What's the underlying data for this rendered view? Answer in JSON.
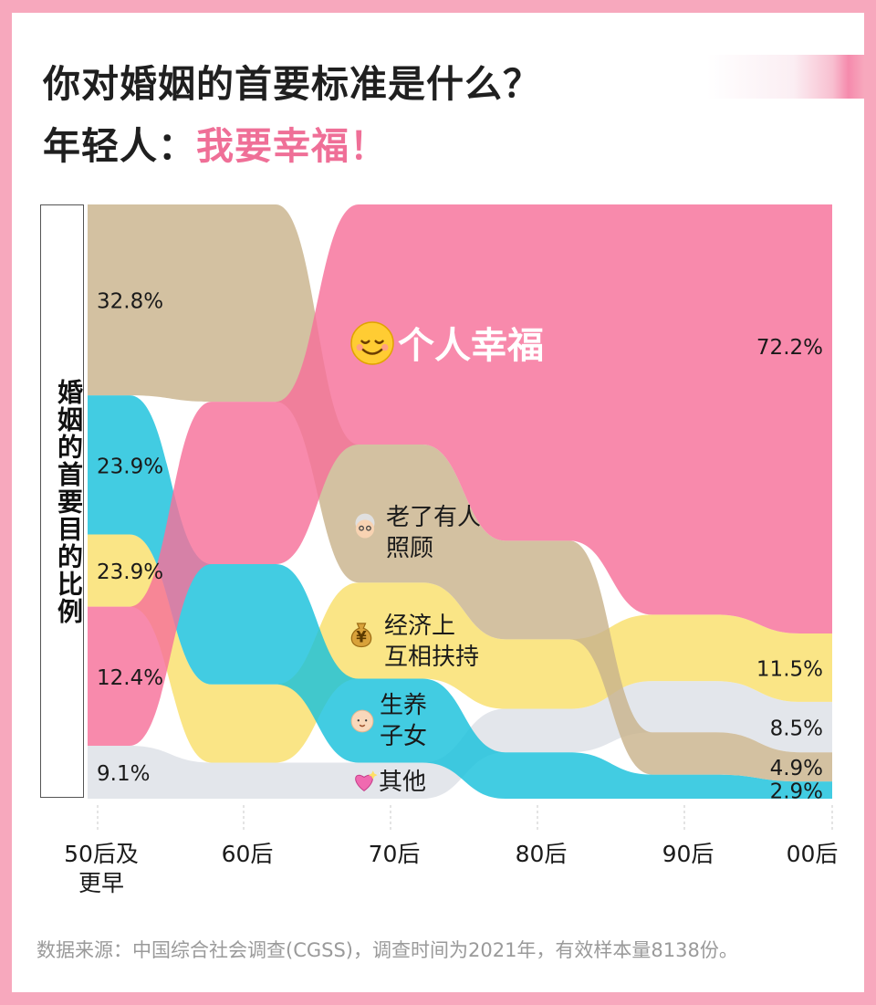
{
  "header": {
    "title_line1": "你对婚姻的首要标准是什么？",
    "title_line2_prefix": "年轻人：",
    "title_line2_highlight": "我要幸福！"
  },
  "chart_data": {
    "type": "sankey",
    "y_axis_label": "婚姻的首要目的比例",
    "categories": [
      "50后及\n更早",
      "60后",
      "70后",
      "80后",
      "90后",
      "00后"
    ],
    "series": [
      {
        "name": "个人幸福",
        "icon": "smiling-face-icon",
        "color": "#f7709a",
        "values": [
          23.9,
          27.0,
          40.0,
          58.0,
          68.0,
          72.2
        ],
        "rank": [
          3,
          1,
          0,
          0,
          0,
          0
        ]
      },
      {
        "name": "老了有人\n照顾",
        "icon": "elderly-woman-icon",
        "color": "#c9b38c",
        "values": [
          32.8,
          32.8,
          23.0,
          17.0,
          7.0,
          4.9
        ],
        "rank": [
          0,
          0,
          1,
          1,
          3,
          3
        ]
      },
      {
        "name": "生养\n子女",
        "icon": "baby-icon",
        "color": "#18c1dc",
        "values": [
          23.9,
          20.0,
          14.0,
          8.0,
          4.0,
          2.9
        ],
        "rank": [
          1,
          2,
          3,
          4,
          4,
          4
        ]
      },
      {
        "name": "经济上\n互相扶持",
        "icon": "money-bag-icon",
        "color": "#f9df6b",
        "values": [
          12.4,
          13.0,
          16.0,
          12.0,
          11.0,
          11.5
        ],
        "rank": [
          2,
          3,
          2,
          2,
          1,
          1
        ]
      },
      {
        "name": "其他",
        "icon": "sparkling-heart-icon",
        "color": "#dde0e7",
        "values": [
          9.1,
          6.0,
          6.0,
          7.5,
          8.5,
          8.5
        ],
        "rank": [
          4,
          4,
          4,
          3,
          2,
          2
        ]
      }
    ],
    "value_labels": {
      "first_column": [
        "32.8%",
        "23.9%",
        "23.9%",
        "12.4%",
        "9.1%"
      ],
      "last_column": [
        "72.2%",
        "11.5%",
        "8.5%",
        "4.9%",
        "2.9%"
      ]
    },
    "ylim": [
      0,
      100
    ]
  },
  "source": "数据来源：中国综合社会调查(CGSS)，调查时间为2021年，有效样本量8138份。"
}
